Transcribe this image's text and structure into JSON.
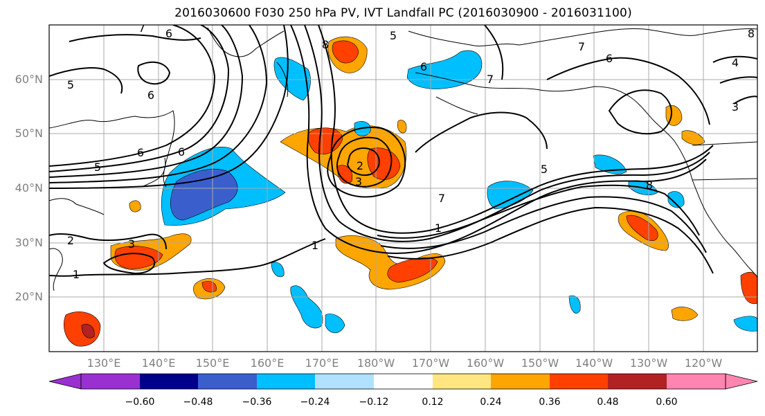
{
  "title": "2016030600 F030 250 hPa PV, IVT Landfall PC (2016030900 - 2016031100)",
  "lat_labels": [
    "60°N",
    "50°N",
    "40°N",
    "30°N",
    "20°N"
  ],
  "lon_labels": [
    "130°E",
    "140°E",
    "150°E",
    "160°E",
    "170°E",
    "180°W",
    "170°W",
    "160°W",
    "150°W",
    "140°W",
    "130°W",
    "120°W"
  ],
  "contour_labels": [
    "7",
    "6",
    "5",
    "6",
    "5",
    "8",
    "5",
    "6",
    "7",
    "6",
    "4",
    "6",
    "6",
    "2",
    "3",
    "7",
    "5",
    "7",
    "1",
    "1",
    "2",
    "3",
    "1",
    "8",
    "3",
    "8"
  ],
  "colorbar": {
    "colors": [
      "#9b30d0",
      "#00008b",
      "#3a5fcd",
      "#00bfff",
      "#b0e2ff",
      "#ffffff",
      "#ffe680",
      "#ffa500",
      "#ff4000",
      "#b22222",
      "#ff85b0"
    ],
    "tick_labels": [
      "−0.60",
      "−0.48",
      "−0.36",
      "−0.24",
      "−0.12",
      "0.12",
      "0.24",
      "0.36",
      "0.48",
      "0.60"
    ]
  }
}
